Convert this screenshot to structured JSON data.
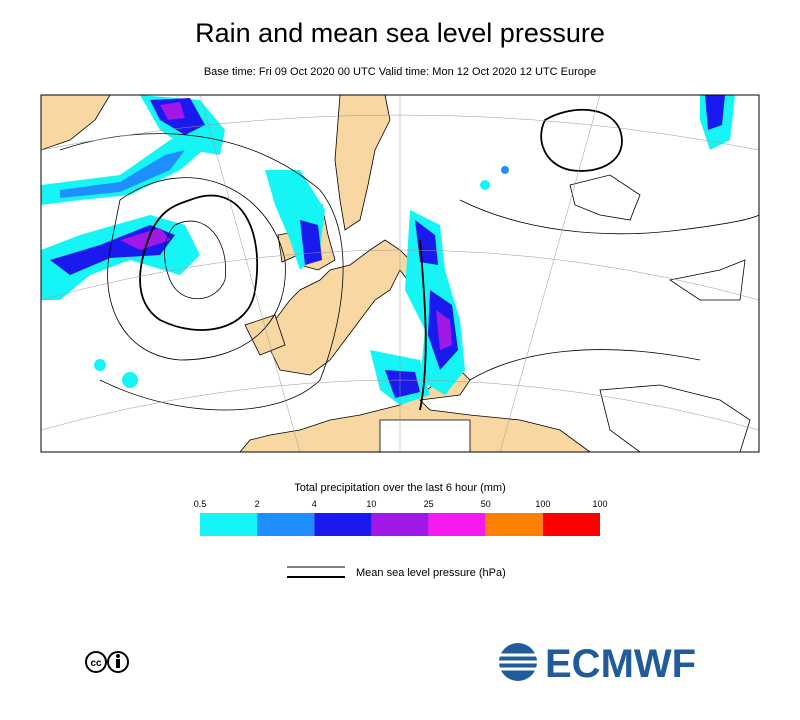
{
  "header": {
    "title": "Rain and mean sea level pressure",
    "subtitle": "Base time: Fri 09 Oct 2020 00 UTC Valid time: Mon 12 Oct 2020 12 UTC Europe"
  },
  "precipitation_legend": {
    "title": "Total precipitation over the last 6 hour (mm)",
    "labels": [
      "0.5",
      "2",
      "4",
      "10",
      "25",
      "50",
      "100",
      "100"
    ],
    "colors": [
      "#16f5f5",
      "#1f8fff",
      "#1a1aee",
      "#a218e6",
      "#f51af0",
      "#ff8000",
      "#ff0000"
    ]
  },
  "pressure_legend": {
    "label": "Mean sea level pressure (hPa)"
  },
  "footer": {
    "logo": "ECMWF"
  }
}
